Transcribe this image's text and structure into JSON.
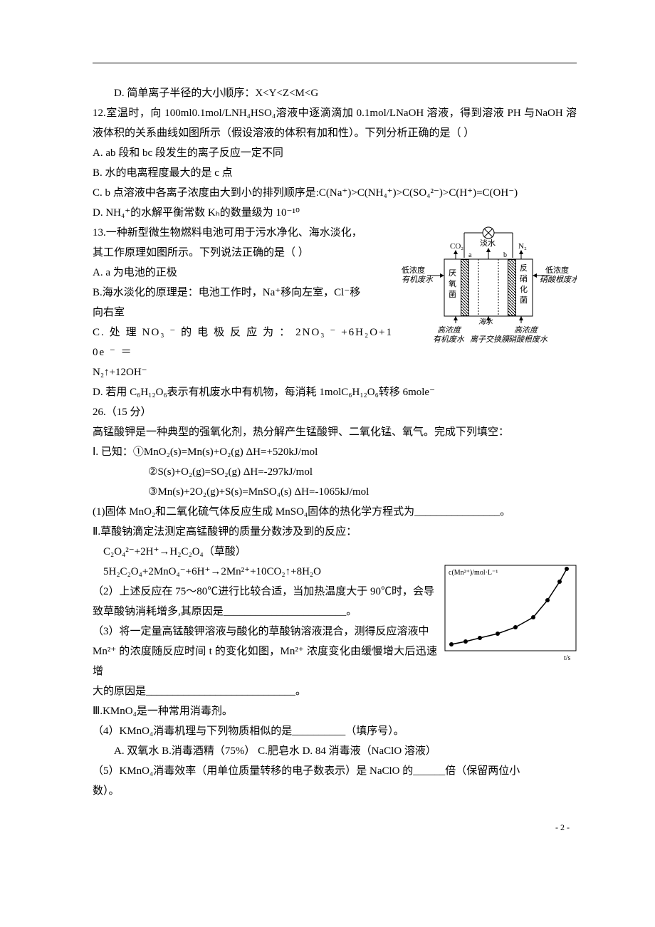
{
  "q11": {
    "optD": "D. 简单离子半径的大小顺序：X<Y<Z<M<G"
  },
  "q12": {
    "stem": "12.室温时，向 100ml0.1mol/LNH₄HSO₄溶液中逐滴滴加 0.1mol/LNaOH 溶液，得到溶液 PH 与NaOH 溶液体积的关系曲线如图所示（假设溶液的体积有加和性）。下列分析正确的是（    ）",
    "optA": "A. ab 段和 bc 段发生的离子反应一定不同",
    "optB": "B. 水的电离程度最大的是 c 点",
    "optC": "C. b 点溶液中各离子浓度由大到小的排列顺序是:C(Na⁺)>C(NH₄⁺)>C(SO₄²⁻)>C(H⁺)=C(OH⁻)",
    "optD": "D. NH₄⁺的水解平衡常数 Kₕ的数量级为 10⁻¹⁰"
  },
  "q13": {
    "stem1": "13.一种新型微生物燃料电池可用于污水净化、海水淡化，",
    "stem2": "其工作原理如图所示。下列说法正确的是（     ）",
    "optA": "A. a 为电池的正极",
    "optB1": "B.海水淡化的原理是：电池工作时，Na⁺移向左室，Cl⁻移",
    "optB2": "向右室",
    "optC1": "C.  处 理  NO₃ ⁻ 的 电 极 反 应 为 ： 2NO₃ ⁻ +6H₂O+10e ⁻ ＝",
    "optC2": "N₂↑+12OH⁻",
    "optD": "D. 若用 C₆H₁₂O₆表示有机废水中有机物，每消耗 1molC₆H₁₂O₆转移 6mole⁻"
  },
  "q26": {
    "head": "26.（15 分）",
    "intro": "高锰酸钾是一种典型的强氧化剂，热分解产生锰酸钾、二氧化锰、氧气。完成下列填空：",
    "part1": "Ⅰ. 已知：①MnO₂(s)=Mn(s)+O₂(g)    ΔH=+520kJ/mol",
    "eq2": "②S(s)+O₂(g)=SO₂(g)     ΔH=-297kJ/mol",
    "eq3": "③Mn(s)+2O₂(g)+S(s)=MnSO₄(s)    ΔH=-1065kJ/mol",
    "task1": "(1)固体 MnO₂和二氧化硫气体反应生成 MnSO₄固体的热化学方程式为________________。",
    "part2": "Ⅱ.草酸钠滴定法测定高锰酸钾的质量分数涉及到的反应：",
    "r1": "C₂O₄²⁻+2H⁺→H₂C₂O₄（草酸）",
    "r2": "5H₂C₂O₄+2MnO₄⁻+6H⁺→2Mn²⁺+10CO₂↑+8H₂O",
    "t2a": "（2）上述反应在 75～80℃进行比较合适，当加热温度大于 90℃时，会导",
    "t2b": "致草酸钠消耗增多,其原因是_______________________。",
    "t3a": "（3）将一定量高锰酸钾溶液与酸化的草酸钠溶液混合，测得反应溶液中",
    "t3b": "Mn²⁺ 的浓度随反应时间 t 的变化如图，Mn²⁺ 浓度变化由缓慢增大后迅速增",
    "t3c": "大的原因是____________________________。",
    "part3": "Ⅲ.KMnO₄是一种常用消毒剂。",
    "t4": "（4）KMnO₄消毒机理与下列物质相似的是__________（填序号）。",
    "t4opts": "A. 双氧水  B.消毒酒精（75%）  C.肥皂水   D. 84 消毒液（NaClO 溶液）",
    "t5a": "（5）KMnO₄消毒效率（用单位质量转移的电子数表示）是 NaClO 的______倍（保留两位小",
    "t5b": "数）。"
  },
  "fuelcell": {
    "type": "diagram",
    "background": "#ffffff",
    "stroke": "#000000",
    "top_labels": {
      "left": "CO₂",
      "mid": "淡水",
      "right": "N₂"
    },
    "left_side": {
      "upper": "低浓度",
      "lower": "有机废水"
    },
    "right_side": {
      "upper": "低浓度",
      "lower": "硝酸根废水"
    },
    "inner_left": {
      "a": "厌",
      "b": "氧",
      "c": "菌"
    },
    "inner_right": {
      "a": "反",
      "b": "硝",
      "c": "化",
      "d": "菌"
    },
    "ports": {
      "a": "a",
      "b": "b"
    },
    "bottom_left": {
      "u": "高浓度",
      "l": "有机废水"
    },
    "bottom_mid": {
      "u": "海水",
      "l": "离子交换膜"
    },
    "bottom_right": {
      "u": "高浓度",
      "l": "硝酸根废水"
    }
  },
  "chart": {
    "type": "line",
    "ylabel": "c(Mn²⁺)/mol·L⁻¹",
    "xlabel": "t/s",
    "background": "#ffffff",
    "grid_color": "#ffffff",
    "border_color": "#000000",
    "line_color": "#000000",
    "marker_color": "#000000",
    "marker_size": 3,
    "points_x": [
      10,
      30,
      50,
      75,
      100,
      125,
      145,
      162,
      172
    ],
    "points_y": [
      112,
      108,
      103,
      97,
      88,
      74,
      50,
      24,
      6
    ]
  },
  "page_number": "- 2 -"
}
